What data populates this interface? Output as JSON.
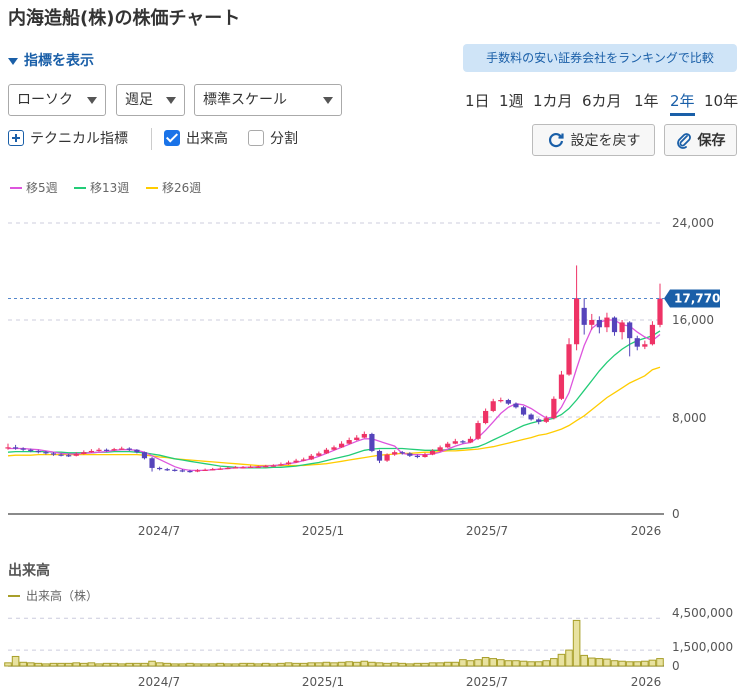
{
  "title": "内海造船(株)の株価チャート",
  "toggle_label": "指標を表示",
  "promo_label": "手数料の安い証券会社をランキングで比較",
  "controls": {
    "chart_type": "ローソク",
    "interval": "週足",
    "scale": "標準スケール"
  },
  "periods": [
    "1日",
    "1週",
    "1カ月",
    "6カ月",
    "1年",
    "2年",
    "10年"
  ],
  "active_period": "2年",
  "options": {
    "technical": "テクニカル指標",
    "volume": "出来高",
    "split": "分割"
  },
  "buttons": {
    "reset": "設定を戻す",
    "save": "保存"
  },
  "colors": {
    "up": "#ee3366",
    "down": "#5544bb",
    "ma5": "#dd55dd",
    "ma13": "#22cc77",
    "ma26": "#ffcc00",
    "volume": "#a89f2a",
    "accent": "#1a5fa8"
  },
  "chart_data": [
    {
      "type": "candlestick",
      "series": [
        {
          "name": "移5週",
          "color": "#dd55dd"
        },
        {
          "name": "移13週",
          "color": "#22cc77"
        },
        {
          "name": "移26週",
          "color": "#ffcc00"
        }
      ],
      "x_ticks": [
        "2024/7",
        "2025/1",
        "2025/7",
        "2026"
      ],
      "y_ticks": [
        "24,000",
        "16,000",
        "8,000",
        "0"
      ],
      "ylim": [
        0,
        24000
      ],
      "current_price": 17770,
      "current_price_label": "17,770",
      "close": [
        5500,
        5400,
        5300,
        5200,
        5100,
        5000,
        4900,
        4850,
        4800,
        4950,
        5100,
        5200,
        5300,
        5250,
        5350,
        5400,
        5300,
        5100,
        4600,
        3800,
        3700,
        3650,
        3600,
        3550,
        3500,
        3600,
        3650,
        3700,
        3750,
        3800,
        3850,
        3850,
        3900,
        3900,
        3950,
        4000,
        4100,
        4250,
        4400,
        4500,
        4800,
        5000,
        5300,
        5500,
        5800,
        6100,
        6300,
        6600,
        5200,
        4400,
        4900,
        5100,
        5000,
        4800,
        4700,
        4900,
        5200,
        5500,
        5800,
        6000,
        5900,
        6200,
        7500,
        8500,
        9300,
        9400,
        9100,
        8800,
        8200,
        7800,
        7600,
        7900,
        9500,
        11500,
        14000,
        17800,
        15600,
        16000,
        15400,
        16200,
        15000,
        15800,
        14500,
        13800,
        14000,
        15600,
        17770
      ],
      "open": [
        5400,
        5500,
        5400,
        5300,
        5200,
        5100,
        5000,
        4900,
        4850,
        4800,
        4950,
        5100,
        5200,
        5300,
        5250,
        5350,
        5400,
        5300,
        5100,
        4600,
        3800,
        3700,
        3650,
        3600,
        3550,
        3500,
        3600,
        3650,
        3700,
        3750,
        3800,
        3850,
        3850,
        3900,
        3900,
        3950,
        4000,
        4100,
        4250,
        4400,
        4500,
        4800,
        5000,
        5300,
        5500,
        5800,
        6100,
        6300,
        6600,
        5200,
        4400,
        4900,
        5100,
        5000,
        4800,
        4700,
        4900,
        5200,
        5500,
        5800,
        6000,
        5900,
        6200,
        7500,
        8500,
        9300,
        9400,
        9100,
        8800,
        8200,
        7800,
        7600,
        7900,
        9500,
        11500,
        14000,
        17000,
        15600,
        16000,
        15400,
        16200,
        15000,
        15800,
        14500,
        13800,
        14000,
        15600
      ],
      "high": [
        5800,
        5700,
        5500,
        5400,
        5300,
        5200,
        5100,
        5000,
        4950,
        5100,
        5250,
        5350,
        5450,
        5400,
        5450,
        5550,
        5500,
        5350,
        5150,
        4700,
        3900,
        3800,
        3750,
        3700,
        3650,
        3700,
        3750,
        3800,
        3850,
        3900,
        3950,
        3950,
        4000,
        4000,
        4050,
        4100,
        4250,
        4400,
        4550,
        4650,
        4950,
        5150,
        5450,
        5650,
        6000,
        6300,
        6500,
        6800,
        6700,
        5300,
        5000,
        5250,
        5200,
        5100,
        4900,
        5050,
        5350,
        5650,
        5950,
        6200,
        6100,
        6400,
        7700,
        8700,
        9500,
        9600,
        9500,
        9200,
        8900,
        8300,
        7900,
        8100,
        9700,
        11800,
        14500,
        20500,
        17800,
        16500,
        16300,
        16600,
        16300,
        16000,
        15900,
        14700,
        14300,
        15900,
        19000
      ],
      "low": [
        5300,
        5300,
        5200,
        5100,
        5000,
        4900,
        4800,
        4750,
        4700,
        4750,
        4900,
        5050,
        5150,
        5150,
        5200,
        5300,
        5200,
        5000,
        4500,
        3500,
        3600,
        3550,
        3500,
        3450,
        3400,
        3450,
        3550,
        3600,
        3650,
        3700,
        3750,
        3750,
        3800,
        3800,
        3850,
        3900,
        3950,
        4050,
        4200,
        4350,
        4450,
        4750,
        4950,
        5250,
        5450,
        5750,
        6050,
        6250,
        5100,
        4200,
        4300,
        4800,
        4900,
        4700,
        4600,
        4650,
        4850,
        5150,
        5450,
        5750,
        5800,
        5850,
        6100,
        7400,
        8400,
        9200,
        9000,
        8700,
        8100,
        7700,
        7400,
        7500,
        7800,
        9400,
        11400,
        13500,
        14800,
        15200,
        14900,
        15000,
        14700,
        14400,
        13000,
        13500,
        13600,
        13900,
        15400
      ],
      "ma5": [
        5400,
        5400,
        5400,
        5350,
        5300,
        5200,
        5100,
        5000,
        4950,
        4950,
        5000,
        5050,
        5100,
        5150,
        5250,
        5300,
        5300,
        5250,
        5100,
        4800,
        4500,
        4200,
        3900,
        3700,
        3600,
        3600,
        3600,
        3650,
        3700,
        3750,
        3800,
        3850,
        3850,
        3900,
        3950,
        4000,
        4050,
        4150,
        4250,
        4400,
        4550,
        4750,
        5000,
        5250,
        5500,
        5750,
        6000,
        6200,
        6200,
        6000,
        5800,
        5600,
        5000,
        4900,
        4900,
        4900,
        4950,
        5100,
        5350,
        5600,
        5800,
        5900,
        6300,
        6900,
        7600,
        8300,
        8800,
        9100,
        9000,
        8700,
        8300,
        7900,
        8000,
        8800,
        10000,
        12000,
        13900,
        15300,
        15800,
        16000,
        16000,
        15600,
        15500,
        15000,
        14600,
        14300,
        14800
      ],
      "ma13": [
        5100,
        5150,
        5150,
        5150,
        5150,
        5150,
        5100,
        5100,
        5050,
        5050,
        5050,
        5050,
        5100,
        5100,
        5150,
        5150,
        5150,
        5100,
        5050,
        4950,
        4850,
        4700,
        4550,
        4450,
        4350,
        4250,
        4150,
        4050,
        3950,
        3900,
        3850,
        3800,
        3800,
        3800,
        3800,
        3850,
        3850,
        3900,
        3950,
        4050,
        4150,
        4250,
        4400,
        4550,
        4700,
        4850,
        5050,
        5250,
        5350,
        5400,
        5400,
        5400,
        5400,
        5350,
        5300,
        5250,
        5250,
        5250,
        5300,
        5350,
        5400,
        5450,
        5550,
        5800,
        6100,
        6400,
        6700,
        7000,
        7300,
        7500,
        7650,
        7750,
        7900,
        8200,
        8700,
        9400,
        10200,
        11000,
        11800,
        12500,
        13100,
        13600,
        14000,
        14300,
        14500,
        14700,
        15100
      ],
      "ma26": [
        4800,
        4850,
        4850,
        4850,
        4900,
        4900,
        4900,
        4900,
        4900,
        4900,
        4900,
        4900,
        4900,
        4900,
        4900,
        4900,
        4900,
        4900,
        4850,
        4800,
        4700,
        4650,
        4550,
        4500,
        4450,
        4400,
        4350,
        4300,
        4250,
        4200,
        4150,
        4100,
        4050,
        4000,
        4000,
        4000,
        4000,
        4000,
        4000,
        4000,
        4050,
        4100,
        4150,
        4250,
        4350,
        4450,
        4550,
        4650,
        4750,
        4850,
        4900,
        4950,
        5000,
        5000,
        5050,
        5100,
        5100,
        5150,
        5200,
        5200,
        5250,
        5300,
        5350,
        5450,
        5550,
        5700,
        5850,
        6000,
        6150,
        6300,
        6500,
        6600,
        6800,
        7000,
        7300,
        7700,
        8100,
        8600,
        9100,
        9600,
        10000,
        10400,
        10800,
        11100,
        11400,
        11900,
        12100
      ]
    },
    {
      "type": "bar",
      "title": "出来高",
      "series": [
        {
          "name": "出来高（株）",
          "color": "#a89f2a"
        }
      ],
      "x_ticks": [
        "2024/7",
        "2025/1",
        "2025/7",
        "2026"
      ],
      "y_ticks": [
        "4,500,000",
        "1,500,000",
        "0"
      ],
      "ylim": [
        0,
        5000000
      ],
      "values": [
        300000,
        900000,
        350000,
        300000,
        250000,
        200000,
        250000,
        250000,
        250000,
        300000,
        250000,
        300000,
        200000,
        250000,
        250000,
        200000,
        250000,
        250000,
        250000,
        450000,
        300000,
        250000,
        200000,
        200000,
        250000,
        200000,
        200000,
        200000,
        250000,
        200000,
        200000,
        250000,
        250000,
        200000,
        250000,
        200000,
        250000,
        300000,
        250000,
        250000,
        300000,
        300000,
        350000,
        300000,
        350000,
        400000,
        350000,
        450000,
        350000,
        300000,
        250000,
        300000,
        250000,
        200000,
        250000,
        250000,
        300000,
        300000,
        350000,
        350000,
        600000,
        500000,
        600000,
        800000,
        700000,
        600000,
        500000,
        500000,
        450000,
        400000,
        400000,
        500000,
        700000,
        1100000,
        1500000,
        4300000,
        1000000,
        750000,
        700000,
        650000,
        500000,
        450000,
        400000,
        400000,
        450000,
        550000,
        700000
      ]
    }
  ]
}
